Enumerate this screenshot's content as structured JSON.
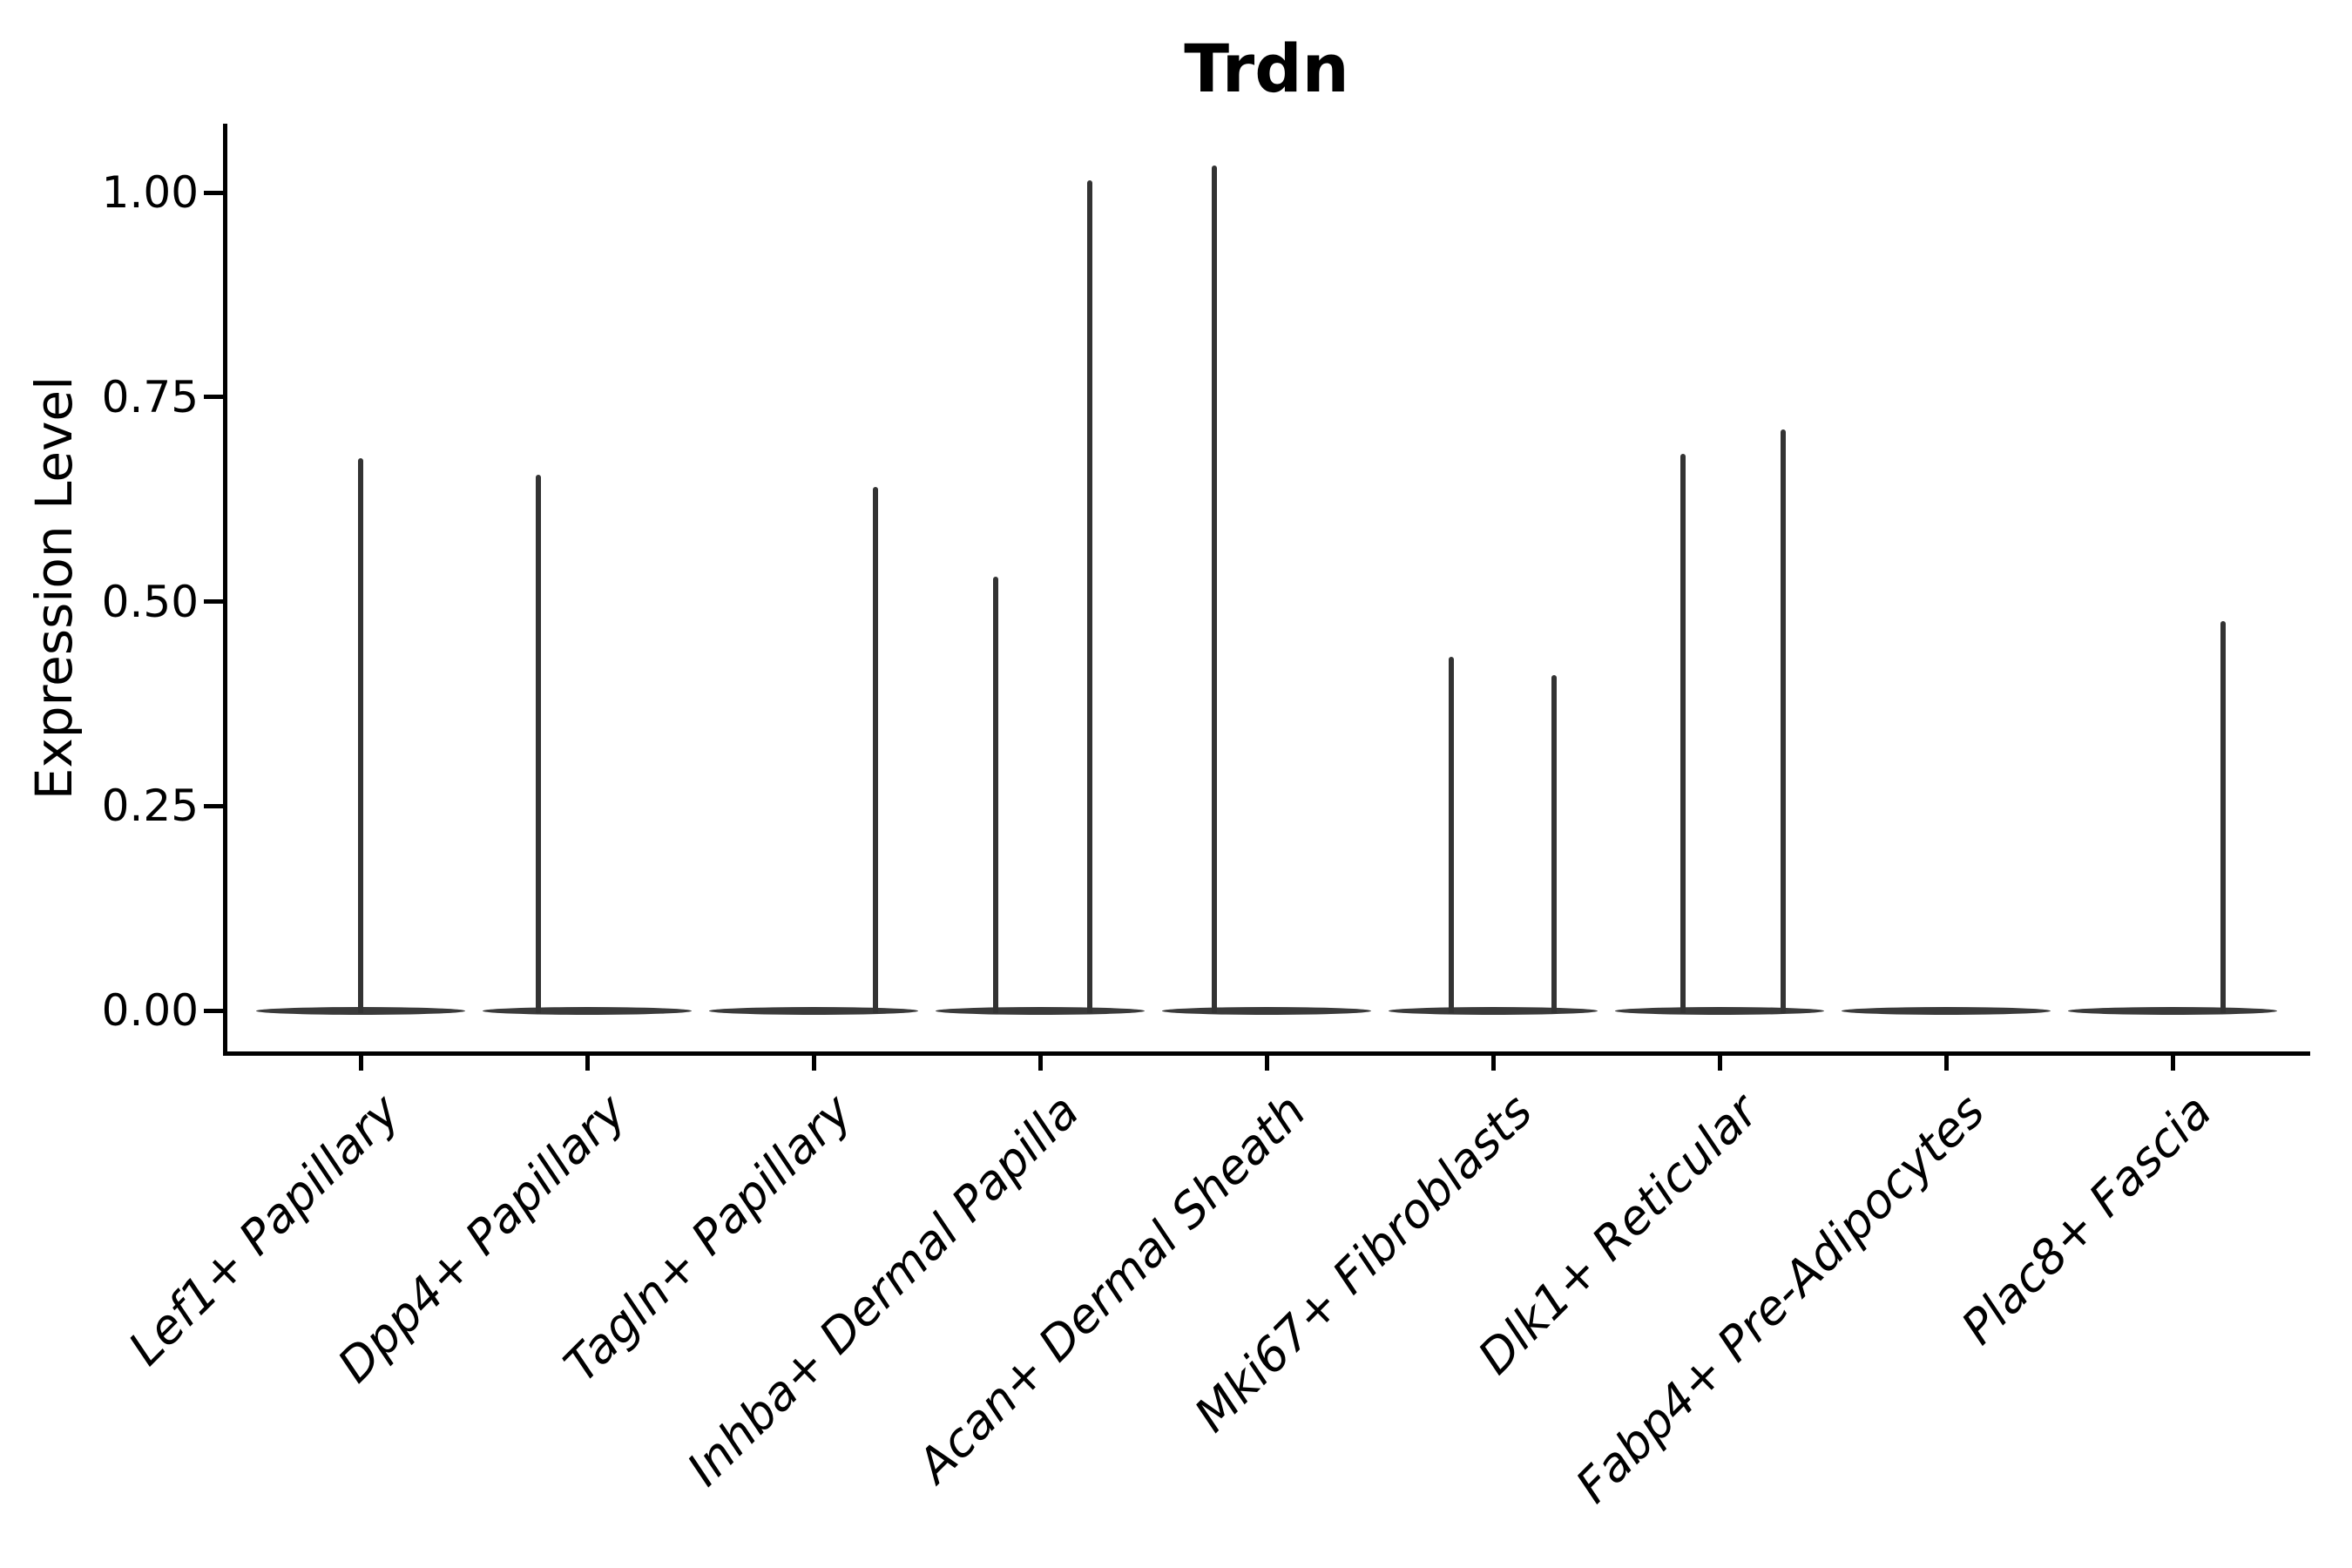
{
  "title": "Trdn",
  "chart_data": {
    "type": "violin",
    "title": "Trdn",
    "ylabel": "Expression Level",
    "xlabel": "",
    "ytick_labels": [
      "0.00",
      "0.25",
      "0.50",
      "0.75",
      "1.00"
    ],
    "ylim": [
      0,
      1.08
    ],
    "grid": false,
    "legend": "none",
    "categories": [
      "Lef1+ Papillary",
      "Dpp4+ Papillary",
      "Tagln+ Papillary",
      "Inhba+ Dermal Papilla",
      "Acan+ Dermal Sheath",
      "Mki67+ Fibroblasts",
      "Dlk1+ Reticular",
      "Fabp4+ Pre-Adipocytes",
      "Plac8+ Fascia"
    ],
    "violins": [
      {
        "category": "Lef1+ Papillary",
        "base_value": 0,
        "spikes": [
          {
            "dx": 0,
            "max": 0.675
          }
        ]
      },
      {
        "category": "Dpp4+ Papillary",
        "base_value": 0,
        "spikes": [
          {
            "dx": -56,
            "max": 0.655
          }
        ]
      },
      {
        "category": "Tagln+ Papillary",
        "base_value": 0,
        "spikes": [
          {
            "dx": 71,
            "max": 0.64
          }
        ]
      },
      {
        "category": "Inhba+ Dermal Papilla",
        "base_value": 0,
        "spikes": [
          {
            "dx": -51,
            "max": 0.53
          },
          {
            "dx": 57,
            "max": 1.015
          }
        ]
      },
      {
        "category": "Acan+ Dermal Sheath",
        "base_value": 0,
        "spikes": [
          {
            "dx": -60,
            "max": 1.033
          }
        ]
      },
      {
        "category": "Mki67+ Fibroblasts",
        "base_value": 0,
        "spikes": [
          {
            "dx": -48,
            "max": 0.432
          },
          {
            "dx": 70,
            "max": 0.41
          }
        ]
      },
      {
        "category": "Dlk1+ Reticular",
        "base_value": 0,
        "spikes": [
          {
            "dx": -42,
            "max": 0.68
          },
          {
            "dx": 73,
            "max": 0.71
          }
        ]
      },
      {
        "category": "Fabp4+ Pre-Adipocytes",
        "base_value": 0,
        "spikes": []
      },
      {
        "category": "Plac8+ Fascia",
        "base_value": 0,
        "spikes": [
          {
            "dx": 58,
            "max": 0.476
          }
        ]
      }
    ],
    "colors": {
      "violin_fill": "#333333",
      "violin_base_fill": "#3a3a3a",
      "axis": "#000000",
      "text": "#000000",
      "background": "#ffffff"
    }
  }
}
